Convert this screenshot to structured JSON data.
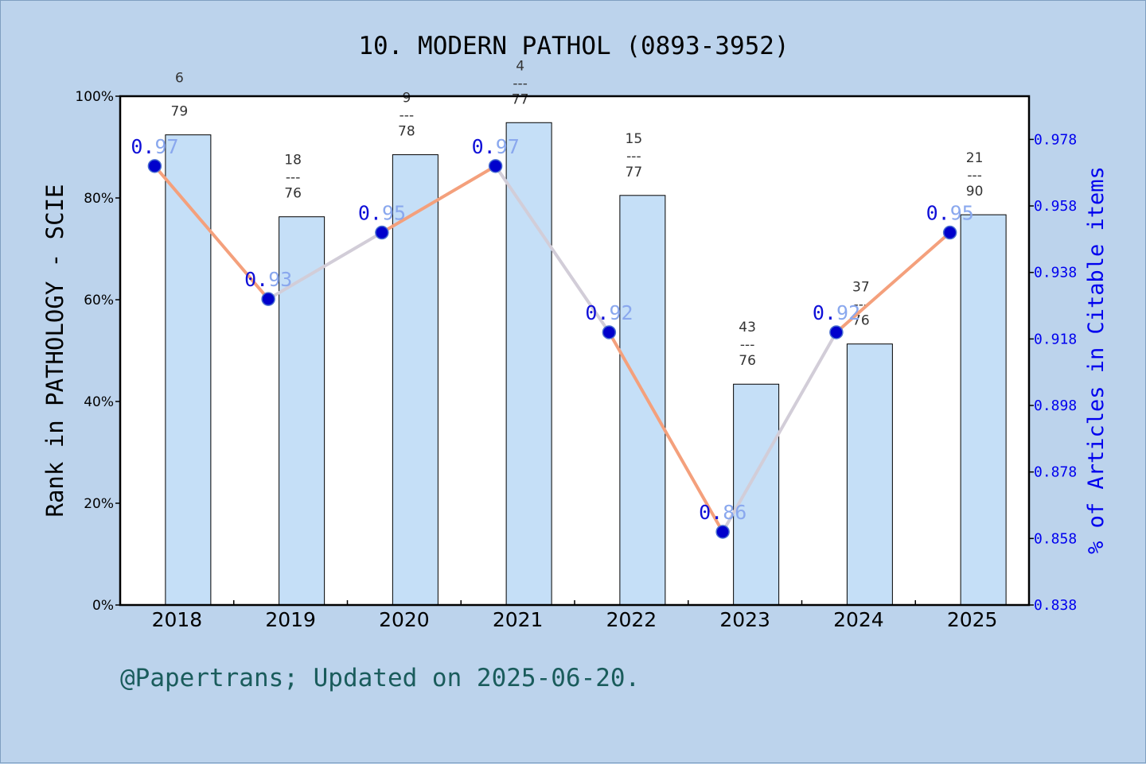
{
  "chart_data": {
    "type": "bar",
    "title": "10. MODERN PATHOL (0893-3952)",
    "categories": [
      "2018",
      "2019",
      "2020",
      "2021",
      "2022",
      "2023",
      "2024",
      "2025"
    ],
    "bar_series": {
      "values": [
        92.4,
        76.3,
        88.5,
        94.8,
        80.5,
        43.4,
        51.3,
        76.7
      ],
      "labels": [
        {
          "rank": "6",
          "total": "79"
        },
        {
          "rank": "18",
          "total": "76"
        },
        {
          "rank": "9",
          "total": "78"
        },
        {
          "rank": "4",
          "total": "77"
        },
        {
          "rank": "15",
          "total": "77"
        },
        {
          "rank": "43",
          "total": "76"
        },
        {
          "rank": "37",
          "total": "76"
        },
        {
          "rank": "21",
          "total": "90"
        }
      ],
      "color": "#c5dff7"
    },
    "line_series": {
      "values": [
        0.97,
        0.93,
        0.95,
        0.97,
        0.92,
        0.86,
        0.92,
        0.95
      ],
      "point_labels": [
        "0.97",
        "0.93",
        "0.95",
        "0.97",
        "0.92",
        "0.86",
        "0.92",
        "0.95"
      ],
      "color": "#f4a07c",
      "marker_color": "#0000cc"
    },
    "ylabel_left": "Rank in PATHOLOGY - SCIE",
    "ylabel_right": "% of Articles in Citable items",
    "y_left": {
      "ylim": [
        0,
        100
      ],
      "ticks": [
        "0%",
        "20%",
        "40%",
        "60%",
        "80%",
        "100%"
      ]
    },
    "y_right": {
      "ylim": [
        0.838,
        0.991
      ],
      "ticks": [
        "0.838",
        "0.858",
        "0.878",
        "0.898",
        "0.918",
        "0.938",
        "0.958",
        "0.978"
      ],
      "color": "#0000ee"
    },
    "separator": "---"
  },
  "footnote": "@Papertrans; Updated on 2025-06-20."
}
